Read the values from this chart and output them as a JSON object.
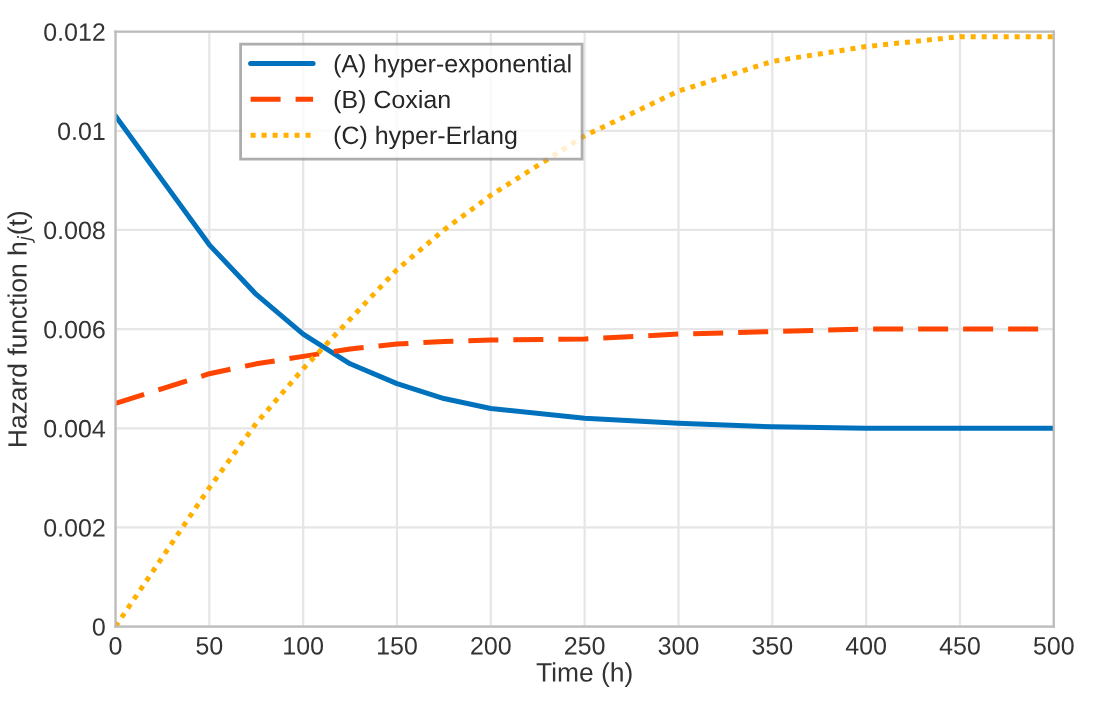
{
  "chart_data": {
    "type": "line",
    "xlabel": "Time (h)",
    "ylabel": "Hazard function h$_{j}$(t)",
    "x": [
      0,
      25,
      50,
      75,
      100,
      125,
      150,
      175,
      200,
      250,
      300,
      350,
      400,
      450,
      500
    ],
    "series": [
      {
        "name": "(A) hyper-exponential",
        "color": "#0072bd",
        "line_style": "solid",
        "values": [
          0.0103,
          0.009,
          0.0077,
          0.0067,
          0.0059,
          0.0053,
          0.0049,
          0.0046,
          0.0044,
          0.0042,
          0.0041,
          0.00403,
          0.004,
          0.004,
          0.004
        ]
      },
      {
        "name": "(B) Coxian",
        "color": "#ff4500",
        "line_style": "dashed",
        "values": [
          0.0045,
          0.0048,
          0.0051,
          0.0053,
          0.00545,
          0.0056,
          0.0057,
          0.00575,
          0.00578,
          0.0058,
          0.0059,
          0.00595,
          0.006,
          0.006,
          0.006
        ]
      },
      {
        "name": "(C) hyper-Erlang",
        "color": "#ffb000",
        "line_style": "dotted",
        "values": [
          0,
          0.0014,
          0.0028,
          0.0041,
          0.0052,
          0.0062,
          0.0072,
          0.008,
          0.0087,
          0.0099,
          0.0108,
          0.0114,
          0.0117,
          0.0119,
          0.0119
        ]
      }
    ],
    "xlim": [
      0,
      500
    ],
    "xticks": [
      0,
      50,
      100,
      150,
      200,
      250,
      300,
      350,
      400,
      450,
      500
    ],
    "ylim": [
      0,
      0.012
    ],
    "yticks": [
      0,
      0.002,
      0.004,
      0.006,
      0.008,
      0.01,
      0.012
    ],
    "grid": true,
    "legend": "top left",
    "marker": "none"
  }
}
